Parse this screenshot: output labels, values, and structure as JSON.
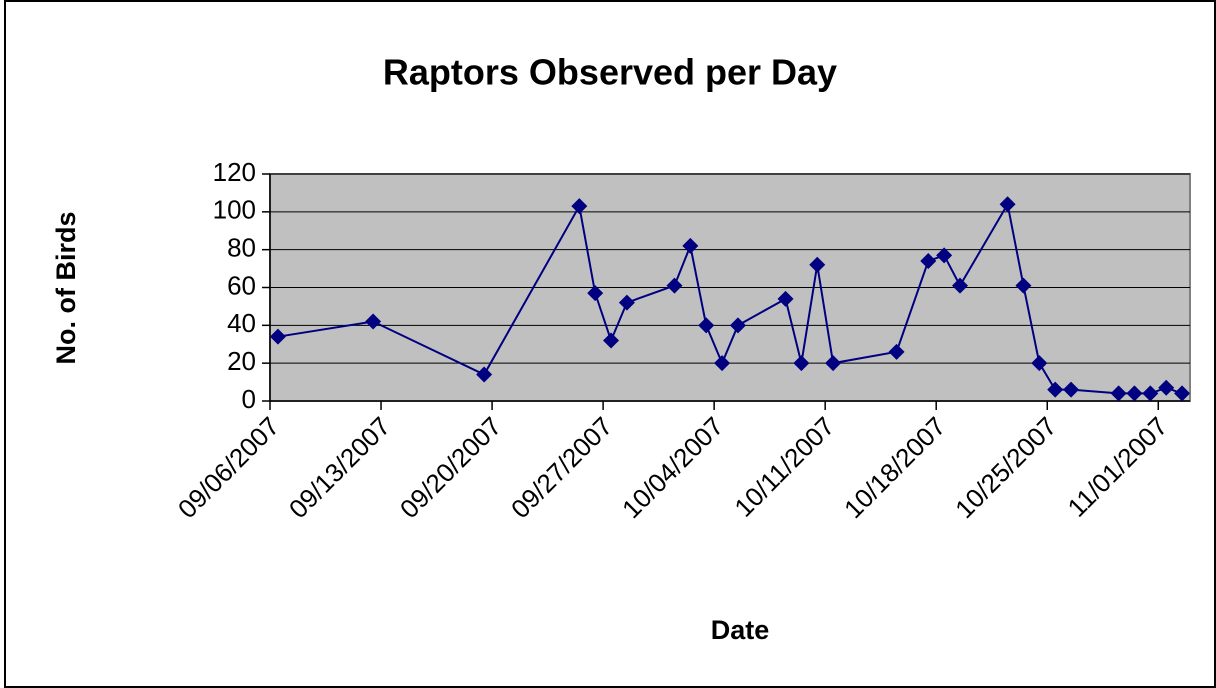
{
  "chart_data": {
    "type": "line",
    "title": "Raptors Observed per Day",
    "x_label": "Date",
    "y_label": "No. of Birds",
    "x": [
      "2007-09-06",
      "2007-09-12",
      "2007-09-19",
      "2007-09-25",
      "2007-09-26",
      "2007-09-27",
      "2007-09-28",
      "2007-10-01",
      "2007-10-02",
      "2007-10-03",
      "2007-10-04",
      "2007-10-05",
      "2007-10-08",
      "2007-10-09",
      "2007-10-10",
      "2007-10-11",
      "2007-10-15",
      "2007-10-17",
      "2007-10-18",
      "2007-10-19",
      "2007-10-22",
      "2007-10-23",
      "2007-10-24",
      "2007-10-25",
      "2007-10-26",
      "2007-10-29",
      "2007-10-30",
      "2007-10-31",
      "2007-11-01",
      "2007-11-02"
    ],
    "series": [
      {
        "name": "Raptors",
        "color": "#000080",
        "values": [
          34,
          42,
          14,
          103,
          57,
          32,
          52,
          61,
          82,
          40,
          20,
          40,
          54,
          20,
          72,
          20,
          26,
          74,
          77,
          61,
          104,
          61,
          20,
          6,
          6,
          4,
          4,
          4,
          7,
          4
        ]
      }
    ],
    "xlim": [
      "2007-09-06",
      "2007-11-03"
    ],
    "xticks": [
      {
        "value": "2007-09-06",
        "label": "09/06/2007"
      },
      {
        "value": "2007-09-13",
        "label": "09/13/2007"
      },
      {
        "value": "2007-09-20",
        "label": "09/20/2007"
      },
      {
        "value": "2007-09-27",
        "label": "09/27/2007"
      },
      {
        "value": "2007-10-04",
        "label": "10/04/2007"
      },
      {
        "value": "2007-10-11",
        "label": "10/11/2007"
      },
      {
        "value": "2007-10-18",
        "label": "10/18/2007"
      },
      {
        "value": "2007-10-25",
        "label": "10/25/2007"
      },
      {
        "value": "2007-11-01",
        "label": "11/01/2007"
      }
    ],
    "ylim": [
      0,
      120
    ],
    "yticks": [
      0,
      20,
      40,
      60,
      80,
      100,
      120
    ],
    "grid": true,
    "plot_background": "#c0c0c0"
  }
}
